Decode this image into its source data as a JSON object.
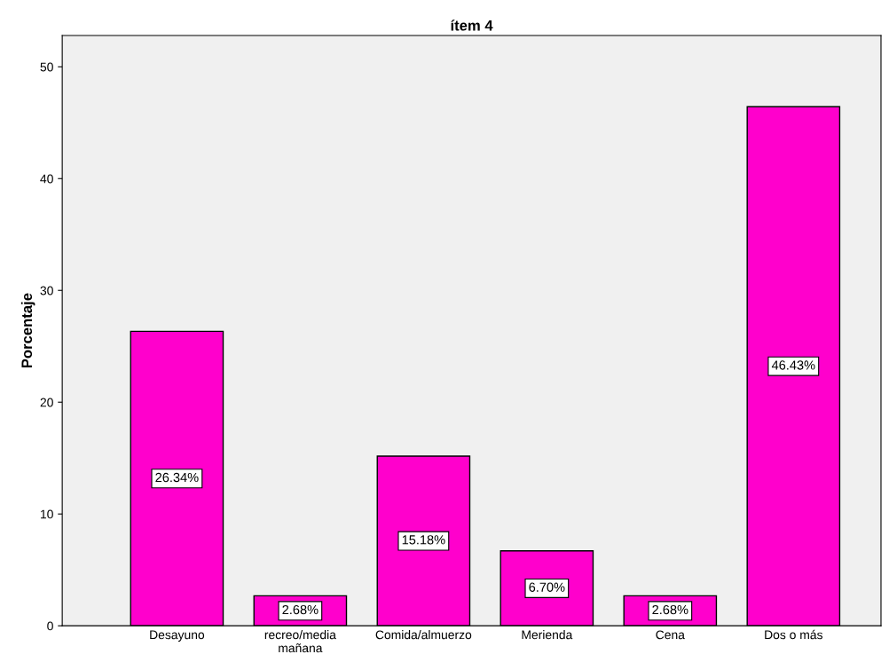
{
  "chart_data": {
    "type": "bar",
    "title": "ítem 4",
    "ylabel": "Porcentaje",
    "categories": [
      "Desayuno",
      "recreo/media\nmañana",
      "Comida/almuerzo",
      "Merienda",
      "Cena",
      "Dos o más"
    ],
    "values": [
      26.34,
      2.68,
      15.18,
      6.7,
      2.68,
      46.43
    ],
    "value_labels": [
      "26.34%",
      "2.68%",
      "15.18%",
      "6.70%",
      "2.68%",
      "46.43%"
    ],
    "color": "#ff00cc",
    "ylim": [
      0,
      52.8
    ],
    "yticks": [
      0,
      10,
      20,
      30,
      40,
      50
    ],
    "grid": false,
    "legend": false
  }
}
